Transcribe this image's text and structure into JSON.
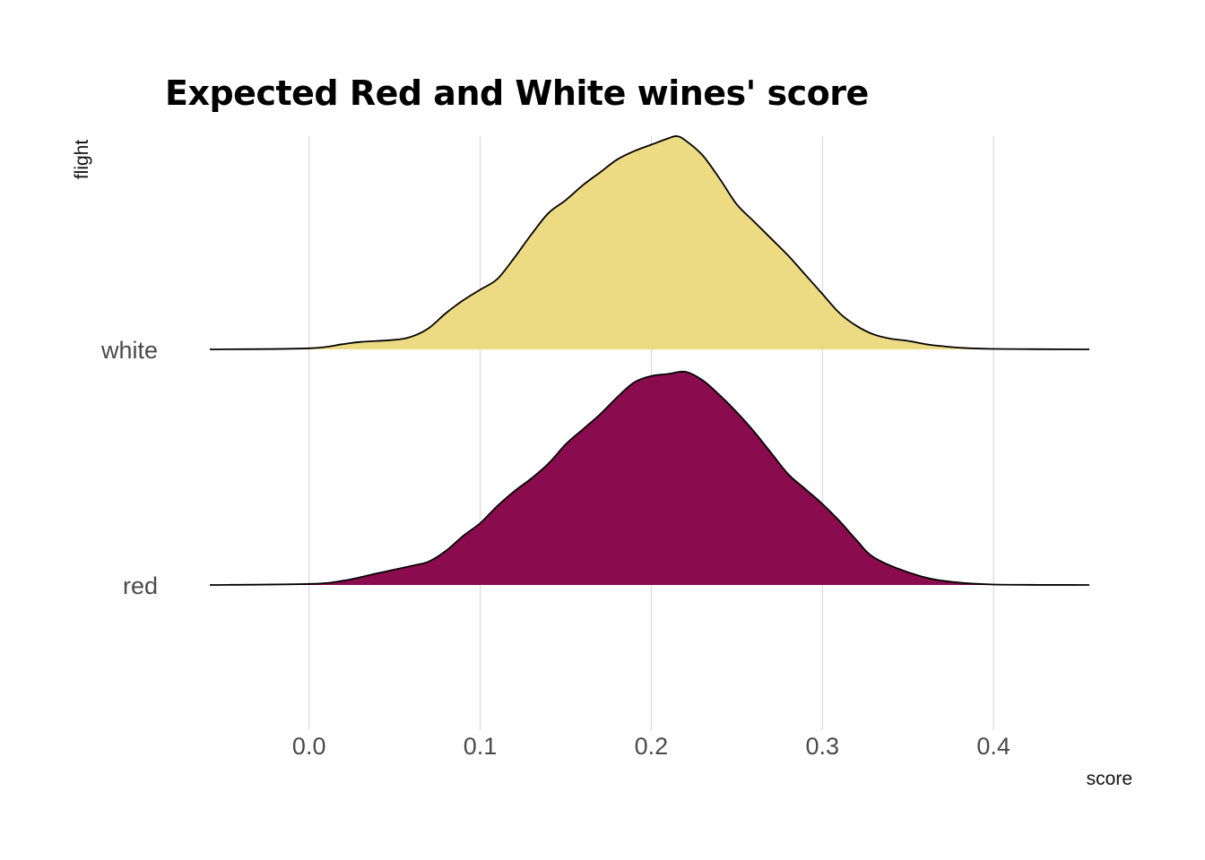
{
  "chart_data": {
    "type": "area",
    "subtype": "ridgeline-density",
    "title": "Expected Red and White wines' score",
    "xlabel": "score",
    "ylabel": "flight",
    "xlim": [
      -0.058,
      0.456
    ],
    "x_ticks": [
      0.0,
      0.1,
      0.2,
      0.3,
      0.4
    ],
    "x_tick_labels": [
      "0.0",
      "0.1",
      "0.2",
      "0.3",
      "0.4"
    ],
    "grid": "vertical major gridlines",
    "legend": "none",
    "categories": [
      "white",
      "red"
    ],
    "series": [
      {
        "name": "white",
        "color": "#ecdb82",
        "x": [
          -0.058,
          0.0,
          0.02,
          0.03,
          0.05,
          0.06,
          0.07,
          0.08,
          0.09,
          0.1,
          0.11,
          0.12,
          0.13,
          0.14,
          0.15,
          0.16,
          0.17,
          0.18,
          0.19,
          0.2,
          0.21,
          0.215,
          0.22,
          0.23,
          0.24,
          0.25,
          0.26,
          0.27,
          0.28,
          0.29,
          0.3,
          0.31,
          0.32,
          0.33,
          0.34,
          0.35,
          0.36,
          0.37,
          0.38,
          0.4,
          0.456
        ],
        "density": [
          0.0,
          0.005,
          0.025,
          0.035,
          0.045,
          0.06,
          0.1,
          0.17,
          0.23,
          0.28,
          0.33,
          0.43,
          0.54,
          0.64,
          0.7,
          0.77,
          0.83,
          0.89,
          0.93,
          0.96,
          0.99,
          1.0,
          0.98,
          0.91,
          0.8,
          0.68,
          0.6,
          0.52,
          0.44,
          0.35,
          0.26,
          0.17,
          0.11,
          0.07,
          0.05,
          0.04,
          0.025,
          0.015,
          0.008,
          0.002,
          0.0
        ]
      },
      {
        "name": "red",
        "color": "#8b0c4e",
        "x": [
          -0.058,
          0.0,
          0.02,
          0.04,
          0.06,
          0.07,
          0.08,
          0.09,
          0.1,
          0.11,
          0.12,
          0.13,
          0.14,
          0.15,
          0.16,
          0.17,
          0.18,
          0.19,
          0.2,
          0.21,
          0.22,
          0.23,
          0.24,
          0.25,
          0.26,
          0.27,
          0.28,
          0.29,
          0.3,
          0.31,
          0.32,
          0.33,
          0.35,
          0.37,
          0.4,
          0.456
        ],
        "density": [
          0.0,
          0.005,
          0.02,
          0.055,
          0.09,
          0.11,
          0.16,
          0.23,
          0.29,
          0.37,
          0.44,
          0.5,
          0.57,
          0.66,
          0.73,
          0.8,
          0.88,
          0.95,
          0.98,
          0.99,
          1.0,
          0.96,
          0.89,
          0.81,
          0.72,
          0.62,
          0.52,
          0.45,
          0.38,
          0.3,
          0.21,
          0.13,
          0.06,
          0.02,
          0.002,
          0.0
        ]
      }
    ]
  }
}
